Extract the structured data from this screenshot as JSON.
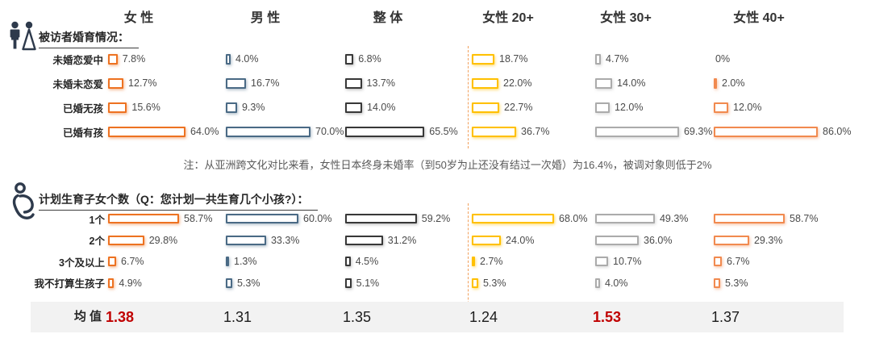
{
  "columns": [
    {
      "name": "female",
      "label": "女 性",
      "color": "#ED7221",
      "glow": "rgba(237,114,33,0.50)"
    },
    {
      "name": "male",
      "label": "男 性",
      "color": "#4A6A85",
      "glow": "rgba(74,106,133,0.45)"
    },
    {
      "name": "overall",
      "label": "整 体",
      "color": "#383838",
      "glow": "rgba(110,110,110,0.45)"
    },
    {
      "name": "female-20plus",
      "label": "女性 20+",
      "color": "#FFC000",
      "glow": "rgba(255,192,0,0.55)"
    },
    {
      "name": "female-30plus",
      "label": "女性 30+",
      "color": "#ABABAB",
      "glow": "rgba(160,160,160,0.40)"
    },
    {
      "name": "female-40plus",
      "label": "女性 40+",
      "color": "#F18A4F",
      "glow": "rgba(241,138,79,0.50)"
    }
  ],
  "section_marriage": {
    "icon": "wedding-couple-icon",
    "title": "被访者婚育情况：",
    "rows": [
      {
        "label": "未婚恋爱中",
        "values": [
          7.8,
          4.0,
          6.8,
          18.7,
          4.7,
          0
        ],
        "display": [
          "7.8%",
          "4.0%",
          "6.8%",
          "18.7%",
          "4.7%",
          "0%"
        ]
      },
      {
        "label": "未婚未恋爱",
        "values": [
          12.7,
          16.7,
          13.7,
          22.0,
          14.0,
          2.0
        ],
        "display": [
          "12.7%",
          "16.7%",
          "13.7%",
          "22.0%",
          "14.0%",
          "2.0%"
        ]
      },
      {
        "label": "已婚无孩",
        "values": [
          15.6,
          9.3,
          14.0,
          22.7,
          12.0,
          12.0
        ],
        "display": [
          "15.6%",
          "9.3%",
          "14.0%",
          "22.7%",
          "12.0%",
          "12.0%"
        ]
      },
      {
        "label": "已婚有孩",
        "values": [
          64.0,
          70.0,
          65.5,
          36.7,
          69.3,
          86.0
        ],
        "display": [
          "64.0%",
          "70.0%",
          "65.5%",
          "36.7%",
          "69.3%",
          "86.0%"
        ]
      }
    ],
    "note": "注：从亚洲跨文化对比来看，女性日本终身未婚率（到50岁为止还没有结过一次婚）为16.4%，被调对象则低于2%"
  },
  "section_children": {
    "icon": "pregnant-woman-icon",
    "title": "计划生育子女个数（Q：您计划一共生育几个小孩?）：",
    "rows": [
      {
        "label": "1个",
        "values": [
          58.7,
          60.0,
          59.2,
          68.0,
          49.3,
          58.7
        ],
        "display": [
          "58.7%",
          "60.0%",
          "59.2%",
          "68.0%",
          "49.3%",
          "58.7%"
        ]
      },
      {
        "label": "2个",
        "values": [
          29.8,
          33.3,
          31.2,
          24.0,
          36.0,
          29.3
        ],
        "display": [
          "29.8%",
          "33.3%",
          "31.2%",
          "24.0%",
          "36.0%",
          "29.3%"
        ]
      },
      {
        "label": "3个及以上",
        "values": [
          6.7,
          1.3,
          4.5,
          2.7,
          10.7,
          6.7
        ],
        "display": [
          "6.7%",
          "1.3%",
          "4.5%",
          "2.7%",
          "10.7%",
          "6.7%"
        ]
      },
      {
        "label": "我不打算生孩子",
        "values": [
          4.9,
          5.3,
          5.1,
          5.3,
          4.0,
          5.3
        ],
        "display": [
          "4.9%",
          "5.3%",
          "5.1%",
          "5.3%",
          "4.0%",
          "5.3%"
        ]
      }
    ],
    "mean": {
      "label": "均 值",
      "values": [
        "1.38",
        "1.31",
        "1.35",
        "1.24",
        "1.53",
        "1.37"
      ],
      "highlight": [
        true,
        false,
        false,
        false,
        true,
        false
      ],
      "highlight_color": "#C00000"
    }
  },
  "chart_data": [
    {
      "type": "bar",
      "orientation": "horizontal",
      "title": "被访者婚育情况",
      "unit": "%",
      "categories": [
        "未婚恋爱中",
        "未婚未恋爱",
        "已婚无孩",
        "已婚有孩"
      ],
      "series": [
        {
          "name": "女性",
          "values": [
            7.8,
            12.7,
            15.6,
            64.0
          ]
        },
        {
          "name": "男性",
          "values": [
            4.0,
            16.7,
            9.3,
            70.0
          ]
        },
        {
          "name": "整体",
          "values": [
            6.8,
            13.7,
            14.0,
            65.5
          ]
        },
        {
          "name": "女性 20+",
          "values": [
            18.7,
            22.0,
            22.7,
            36.7
          ]
        },
        {
          "name": "女性 30+",
          "values": [
            4.7,
            14.0,
            12.0,
            69.3
          ]
        },
        {
          "name": "女性 40+",
          "values": [
            0,
            2.0,
            12.0,
            86.0
          ]
        }
      ],
      "annotation": "注：从亚洲跨文化对比来看，女性日本终身未婚率（到50岁为止还没有结过一次婚）为16.4%，被调对象则低于2%"
    },
    {
      "type": "bar",
      "orientation": "horizontal",
      "title": "计划生育子女个数（Q：您计划一共生育几个小孩?）",
      "unit": "%",
      "categories": [
        "1个",
        "2个",
        "3个及以上",
        "我不打算生孩子"
      ],
      "series": [
        {
          "name": "女性",
          "values": [
            58.7,
            29.8,
            6.7,
            4.9
          ]
        },
        {
          "name": "男性",
          "values": [
            60.0,
            33.3,
            1.3,
            5.3
          ]
        },
        {
          "name": "整体",
          "values": [
            59.2,
            31.2,
            4.5,
            5.1
          ]
        },
        {
          "name": "女性 20+",
          "values": [
            68.0,
            24.0,
            2.7,
            5.3
          ]
        },
        {
          "name": "女性 30+",
          "values": [
            49.3,
            36.0,
            10.7,
            4.0
          ]
        },
        {
          "name": "女性 40+",
          "values": [
            58.7,
            29.3,
            6.7,
            5.3
          ]
        }
      ],
      "mean": {
        "label": "均值",
        "values": [
          1.38,
          1.31,
          1.35,
          1.24,
          1.53,
          1.37
        ]
      }
    }
  ]
}
